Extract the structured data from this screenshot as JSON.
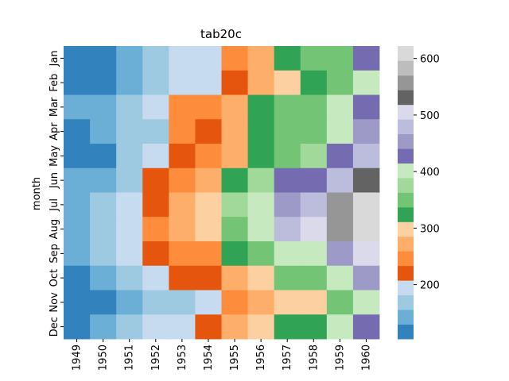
{
  "chart_data": {
    "type": "heatmap",
    "title": "tab20c",
    "xlabel": "",
    "ylabel": "month",
    "x_categories": [
      "1949",
      "1950",
      "1951",
      "1952",
      "1953",
      "1954",
      "1955",
      "1956",
      "1957",
      "1958",
      "1959",
      "1960"
    ],
    "y_categories": [
      "Jan",
      "Feb",
      "Mar",
      "Apr",
      "May",
      "Jun",
      "Jul",
      "Aug",
      "Sep",
      "Oct",
      "Nov",
      "Dec"
    ],
    "values": [
      [
        112,
        115,
        145,
        171,
        196,
        204,
        242,
        284,
        315,
        340,
        360,
        417
      ],
      [
        118,
        126,
        150,
        180,
        196,
        188,
        233,
        277,
        301,
        318,
        342,
        391
      ],
      [
        132,
        141,
        178,
        193,
        236,
        235,
        267,
        317,
        356,
        362,
        406,
        419
      ],
      [
        129,
        135,
        163,
        181,
        235,
        227,
        269,
        313,
        348,
        348,
        396,
        461
      ],
      [
        121,
        125,
        172,
        183,
        229,
        234,
        270,
        318,
        355,
        363,
        420,
        472
      ],
      [
        135,
        149,
        178,
        218,
        243,
        264,
        315,
        374,
        422,
        435,
        472,
        535
      ],
      [
        148,
        170,
        199,
        230,
        264,
        302,
        364,
        413,
        465,
        491,
        548,
        622
      ],
      [
        148,
        170,
        199,
        242,
        272,
        293,
        347,
        405,
        467,
        505,
        559,
        606
      ],
      [
        136,
        158,
        184,
        209,
        237,
        259,
        312,
        355,
        404,
        404,
        463,
        508
      ],
      [
        119,
        133,
        162,
        191,
        211,
        229,
        274,
        306,
        347,
        359,
        407,
        461
      ],
      [
        104,
        114,
        146,
        172,
        180,
        203,
        237,
        271,
        305,
        310,
        362,
        390
      ],
      [
        118,
        140,
        166,
        194,
        201,
        229,
        278,
        306,
        336,
        337,
        405,
        432
      ]
    ],
    "vmin": 104,
    "vmax": 622,
    "colormap": "tab20c",
    "colors": [
      "#3182bd",
      "#6baed6",
      "#9ecae1",
      "#c6dbef",
      "#e6550d",
      "#fd8d3c",
      "#fdae6b",
      "#fdd0a2",
      "#31a354",
      "#74c476",
      "#a1d99b",
      "#c7e9c0",
      "#756bb1",
      "#9e9ac8",
      "#bcbddc",
      "#dadaeb",
      "#636363",
      "#969696",
      "#bdbdbd",
      "#d9d9d9"
    ],
    "colorbar_ticks": [
      200,
      300,
      400,
      500,
      600
    ],
    "grid": false
  }
}
